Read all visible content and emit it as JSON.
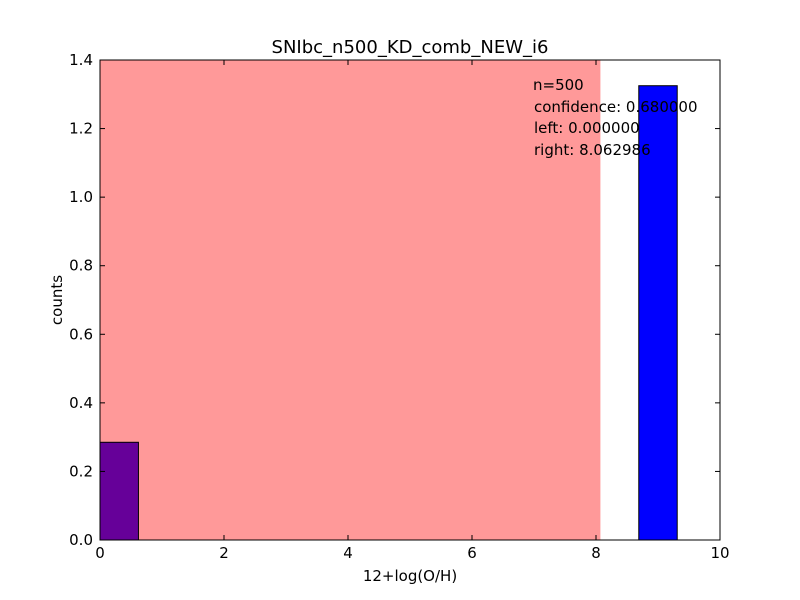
{
  "chart_data": {
    "type": "bar",
    "title": "SNIbc_n500_KD_comb_NEW_i6",
    "xlabel": "12+log(O/H)",
    "ylabel": "counts",
    "xlim": [
      0,
      10
    ],
    "ylim": [
      0,
      1.4
    ],
    "x_ticks": [
      "0",
      "2",
      "4",
      "6",
      "8",
      "10"
    ],
    "y_ticks": [
      "0.0",
      "0.2",
      "0.4",
      "0.6",
      "0.8",
      "1.0",
      "1.2",
      "1.4"
    ],
    "grid": false,
    "bars": [
      {
        "x_left": 0.0,
        "x_right": 0.62,
        "value": 0.285
      },
      {
        "x_left": 8.69,
        "x_right": 9.31,
        "value": 1.325
      }
    ],
    "confidence_region": {
      "left": 0.0,
      "right": 8.062986
    },
    "annotation_lines": [
      "n=500",
      "confidence: 0.680000",
      "left: 0.000000",
      "right: 8.062986"
    ],
    "colors": {
      "bar": "#0000ff",
      "bar_in_region": "#660099",
      "region_fill": "#ff9999",
      "axes": "#000000"
    }
  }
}
